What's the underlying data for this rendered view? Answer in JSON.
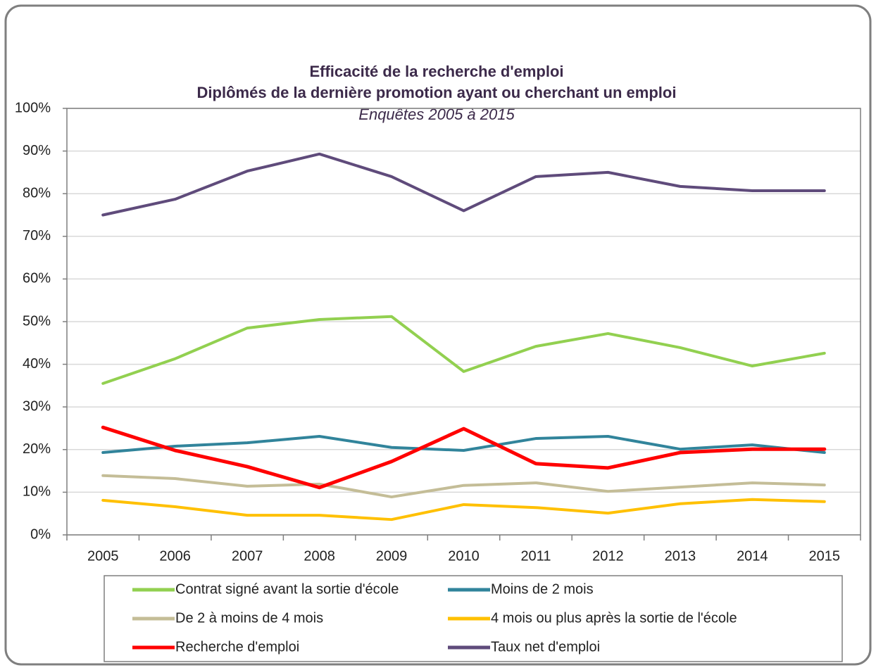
{
  "chart_data": {
    "type": "line",
    "title": "Efficacité de la recherche d'emploi",
    "subtitle": "Diplômés de la dernière promotion ayant ou cherchant un emploi",
    "annotation": "Enquêtes 2005 à 2015",
    "categories": [
      "2005",
      "2006",
      "2007",
      "2008",
      "2009",
      "2010",
      "2011",
      "2012",
      "2013",
      "2014",
      "2015"
    ],
    "series": [
      {
        "name": "Contrat signé avant la sortie d'école",
        "color": "#92d050",
        "values": [
          35.5,
          41.3,
          48.5,
          50.5,
          51.2,
          38.3,
          44.2,
          47.2,
          43.9,
          39.6,
          42.6
        ]
      },
      {
        "name": "Moins de 2 mois",
        "color": "#31849b",
        "values": [
          19.3,
          20.8,
          21.6,
          23.1,
          20.5,
          19.8,
          22.6,
          23.1,
          20.1,
          21.1,
          19.3
        ]
      },
      {
        "name": "De 2 à moins de 4 mois",
        "color": "#c4bd97",
        "values": [
          13.9,
          13.2,
          11.4,
          11.9,
          8.9,
          11.6,
          12.2,
          10.2,
          11.2,
          12.2,
          11.7
        ]
      },
      {
        "name": "4 mois ou plus après la sortie de l'école",
        "color": "#ffc000",
        "values": [
          8.1,
          6.6,
          4.6,
          4.6,
          3.6,
          7.1,
          6.4,
          5.1,
          7.3,
          8.3,
          7.8
        ]
      },
      {
        "name": "Recherche d'emploi",
        "color": "#ff0000",
        "values": [
          25.2,
          19.8,
          16,
          11.1,
          17.2,
          24.9,
          16.7,
          15.7,
          19.3,
          20.1,
          20.1
        ]
      },
      {
        "name": "Taux net d'emploi",
        "color": "#5f4b7b",
        "values": [
          75,
          78.7,
          85.3,
          89.3,
          84,
          76,
          84,
          85,
          81.7,
          80.7,
          80.7
        ]
      }
    ],
    "ylim": [
      0,
      100
    ],
    "yticks": [
      {
        "value": 0,
        "label": "0%"
      },
      {
        "value": 10,
        "label": "10%"
      },
      {
        "value": 20,
        "label": "20%"
      },
      {
        "value": 30,
        "label": "30%"
      },
      {
        "value": 40,
        "label": "40%"
      },
      {
        "value": 50,
        "label": "50%"
      },
      {
        "value": 60,
        "label": "60%"
      },
      {
        "value": 70,
        "label": "70%"
      },
      {
        "value": 80,
        "label": "80%"
      },
      {
        "value": 90,
        "label": "90%"
      },
      {
        "value": 100,
        "label": "100%"
      }
    ],
    "grid": true,
    "legend": "bottom"
  }
}
